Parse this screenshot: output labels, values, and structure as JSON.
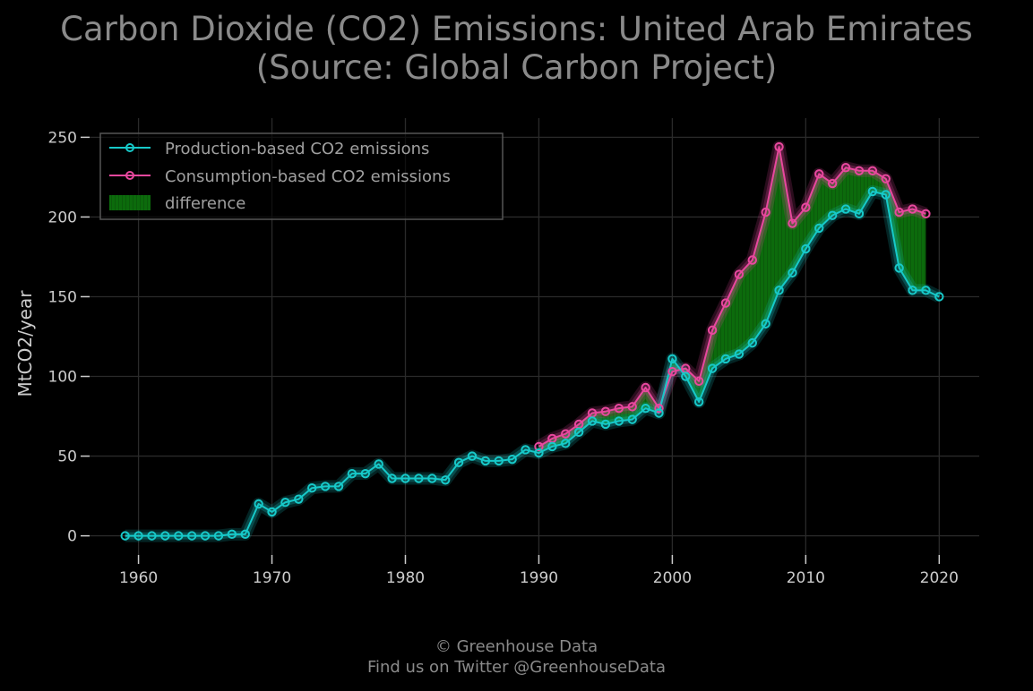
{
  "title_line1": "Carbon Dioxide (CO2) Emissions: United Arab Emirates",
  "title_line2": "(Source: Global Carbon Project)",
  "credit_line1": "© Greenhouse Data",
  "credit_line2": "Find us on Twitter @GreenhouseData",
  "colors": {
    "background": "#000000",
    "production": "#17c9c9",
    "consumption": "#e8489e",
    "difference": "#0c6b0c",
    "grid": "#2a2a2a",
    "text": "#cccccc"
  },
  "chart_data": {
    "type": "line",
    "ylabel": "MtCO2/year",
    "xlabel": "",
    "ylim": [
      -12,
      262
    ],
    "xlim": [
      1956,
      2023
    ],
    "xticks": [
      1960,
      1970,
      1980,
      1990,
      2000,
      2010,
      2020
    ],
    "yticks": [
      0,
      50,
      100,
      150,
      200,
      250
    ],
    "grid": true,
    "legend_position": "top-left",
    "legend": [
      "Production-based CO2 emissions",
      "Consumption-based CO2 emissions",
      "difference"
    ],
    "series": [
      {
        "name": "Production-based CO2 emissions",
        "x": [
          1959,
          1960,
          1961,
          1962,
          1963,
          1964,
          1965,
          1966,
          1967,
          1968,
          1969,
          1970,
          1971,
          1972,
          1973,
          1974,
          1975,
          1976,
          1977,
          1978,
          1979,
          1980,
          1981,
          1982,
          1983,
          1984,
          1985,
          1986,
          1987,
          1988,
          1989,
          1990,
          1991,
          1992,
          1993,
          1994,
          1995,
          1996,
          1997,
          1998,
          1999,
          2000,
          2001,
          2002,
          2003,
          2004,
          2005,
          2006,
          2007,
          2008,
          2009,
          2010,
          2011,
          2012,
          2013,
          2014,
          2015,
          2016,
          2017,
          2018,
          2019,
          2020
        ],
        "values": [
          0,
          0,
          0,
          0,
          0,
          0,
          0,
          0,
          1,
          1,
          20,
          15,
          21,
          23,
          30,
          31,
          31,
          39,
          39,
          45,
          36,
          36,
          36,
          36,
          35,
          46,
          50,
          47,
          47,
          48,
          54,
          52,
          56,
          58,
          65,
          72,
          70,
          72,
          73,
          80,
          77,
          111,
          100,
          84,
          105,
          111,
          114,
          121,
          133,
          154,
          165,
          180,
          193,
          201,
          205,
          202,
          216,
          214,
          168,
          154,
          154,
          150
        ]
      },
      {
        "name": "Consumption-based CO2 emissions",
        "x": [
          1990,
          1991,
          1992,
          1993,
          1994,
          1995,
          1996,
          1997,
          1998,
          1999,
          2000,
          2001,
          2002,
          2003,
          2004,
          2005,
          2006,
          2007,
          2008,
          2009,
          2010,
          2011,
          2012,
          2013,
          2014,
          2015,
          2016,
          2017,
          2018,
          2019
        ],
        "values": [
          56,
          61,
          64,
          70,
          77,
          78,
          80,
          81,
          93,
          80,
          103,
          105,
          97,
          129,
          146,
          164,
          173,
          203,
          244,
          196,
          206,
          227,
          221,
          231,
          229,
          229,
          224,
          203,
          205,
          202
        ]
      }
    ]
  }
}
